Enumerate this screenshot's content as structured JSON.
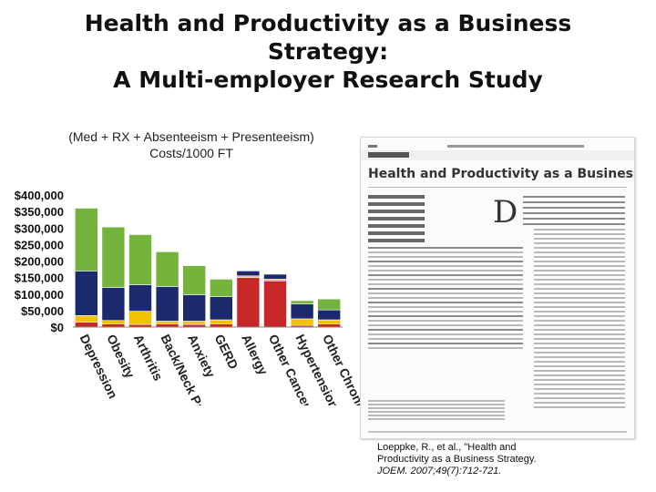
{
  "slide": {
    "title_lines": [
      "Health and Productivity as a Business",
      "Strategy:",
      "A Multi-employer Research Study"
    ]
  },
  "chart_data": {
    "type": "bar",
    "stacked": true,
    "title_lines": [
      "(Med + RX + Absenteeism + Presenteeism)",
      "Costs/1000 FT"
    ],
    "categories": [
      "Depression",
      "Obesity",
      "Arthritis",
      "Back/Neck Pain",
      "Anxiety",
      "GERD",
      "Allergy",
      "Other Cancer",
      "Hypertension",
      "Other Chronic Pain"
    ],
    "series": [
      {
        "color": "#c62828",
        "values": [
          15000,
          10000,
          8000,
          10000,
          8000,
          10000,
          150000,
          140000,
          5000,
          10000
        ]
      },
      {
        "color": "#f2c200",
        "values": [
          20000,
          10000,
          40000,
          8000,
          10000,
          12000,
          5000,
          5000,
          20000,
          12000
        ]
      },
      {
        "color": "#1a2a6c",
        "values": [
          135000,
          100000,
          80000,
          105000,
          80000,
          70000,
          15000,
          15000,
          45000,
          30000
        ]
      },
      {
        "color": "#74b43c",
        "values": [
          190000,
          183000,
          152000,
          105000,
          88000,
          53000,
          0,
          0,
          10000,
          33000
        ]
      }
    ],
    "ylim": [
      0,
      400000
    ],
    "yticks": [
      "$400,000",
      "$350,000",
      "$300,000",
      "$250,000",
      "$200,000",
      "$150,000",
      "$100,000",
      "$50,000",
      "$0"
    ],
    "grid": false,
    "legend": "none"
  },
  "paper": {
    "title": "Health and Productivity as a Business Strategy"
  },
  "citation": {
    "line1": "Loeppke, R., et al., \"Health and",
    "line2": "Productivity as a Business Strategy.",
    "line3": "JOEM. 2007;49(7):712-721."
  }
}
